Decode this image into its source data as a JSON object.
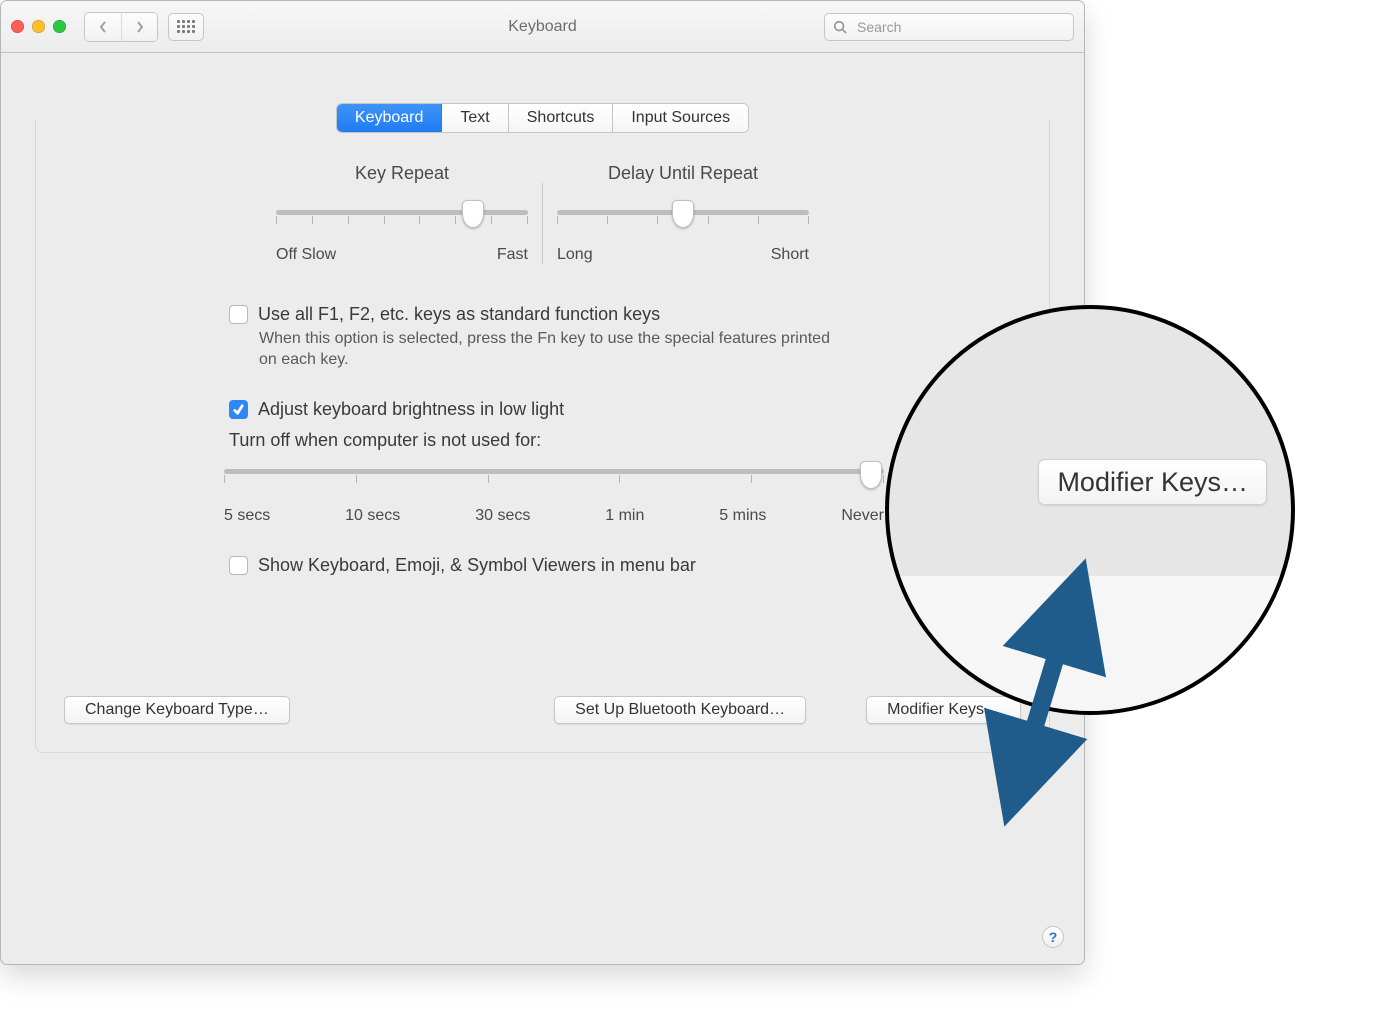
{
  "window": {
    "title": "Keyboard"
  },
  "search": {
    "placeholder": "Search"
  },
  "tabs": {
    "items": [
      {
        "label": "Keyboard",
        "active": true
      },
      {
        "label": "Text",
        "active": false
      },
      {
        "label": "Shortcuts",
        "active": false
      },
      {
        "label": "Input Sources",
        "active": false
      }
    ]
  },
  "sliders": {
    "key_repeat": {
      "title": "Key Repeat",
      "left_label": "Off Slow",
      "right_label": "Fast",
      "ticks": 8,
      "thumb_pos_pct": 78
    },
    "delay_until_repeat": {
      "title": "Delay Until Repeat",
      "left_label": "Long",
      "right_label": "Short",
      "ticks": 6,
      "thumb_pos_pct": 50
    }
  },
  "checkboxes": {
    "fn_keys": {
      "label": "Use all F1, F2, etc. keys as standard function keys",
      "checked": false,
      "subtext": "When this option is selected, press the Fn key to use the special features printed on each key."
    },
    "brightness": {
      "label": "Adjust keyboard brightness in low light",
      "checked": true
    },
    "show_viewers": {
      "label": "Show Keyboard, Emoji, & Symbol Viewers in menu bar",
      "checked": false
    }
  },
  "idle": {
    "title": "Turn off when computer is not used for:",
    "labels": [
      "5 secs",
      "10 secs",
      "30 secs",
      "1 min",
      "5 mins",
      "Never"
    ],
    "thumb_pos_pct": 98
  },
  "buttons": {
    "change_type": "Change Keyboard Type…",
    "bluetooth": "Set Up Bluetooth Keyboard…",
    "modifier": "Modifier Keys…"
  },
  "help": {
    "label": "?"
  },
  "callout": {
    "button_label": "Modifier Keys…"
  },
  "colors": {
    "accent": "#2f86f6",
    "arrow": "#1f5c8b"
  }
}
